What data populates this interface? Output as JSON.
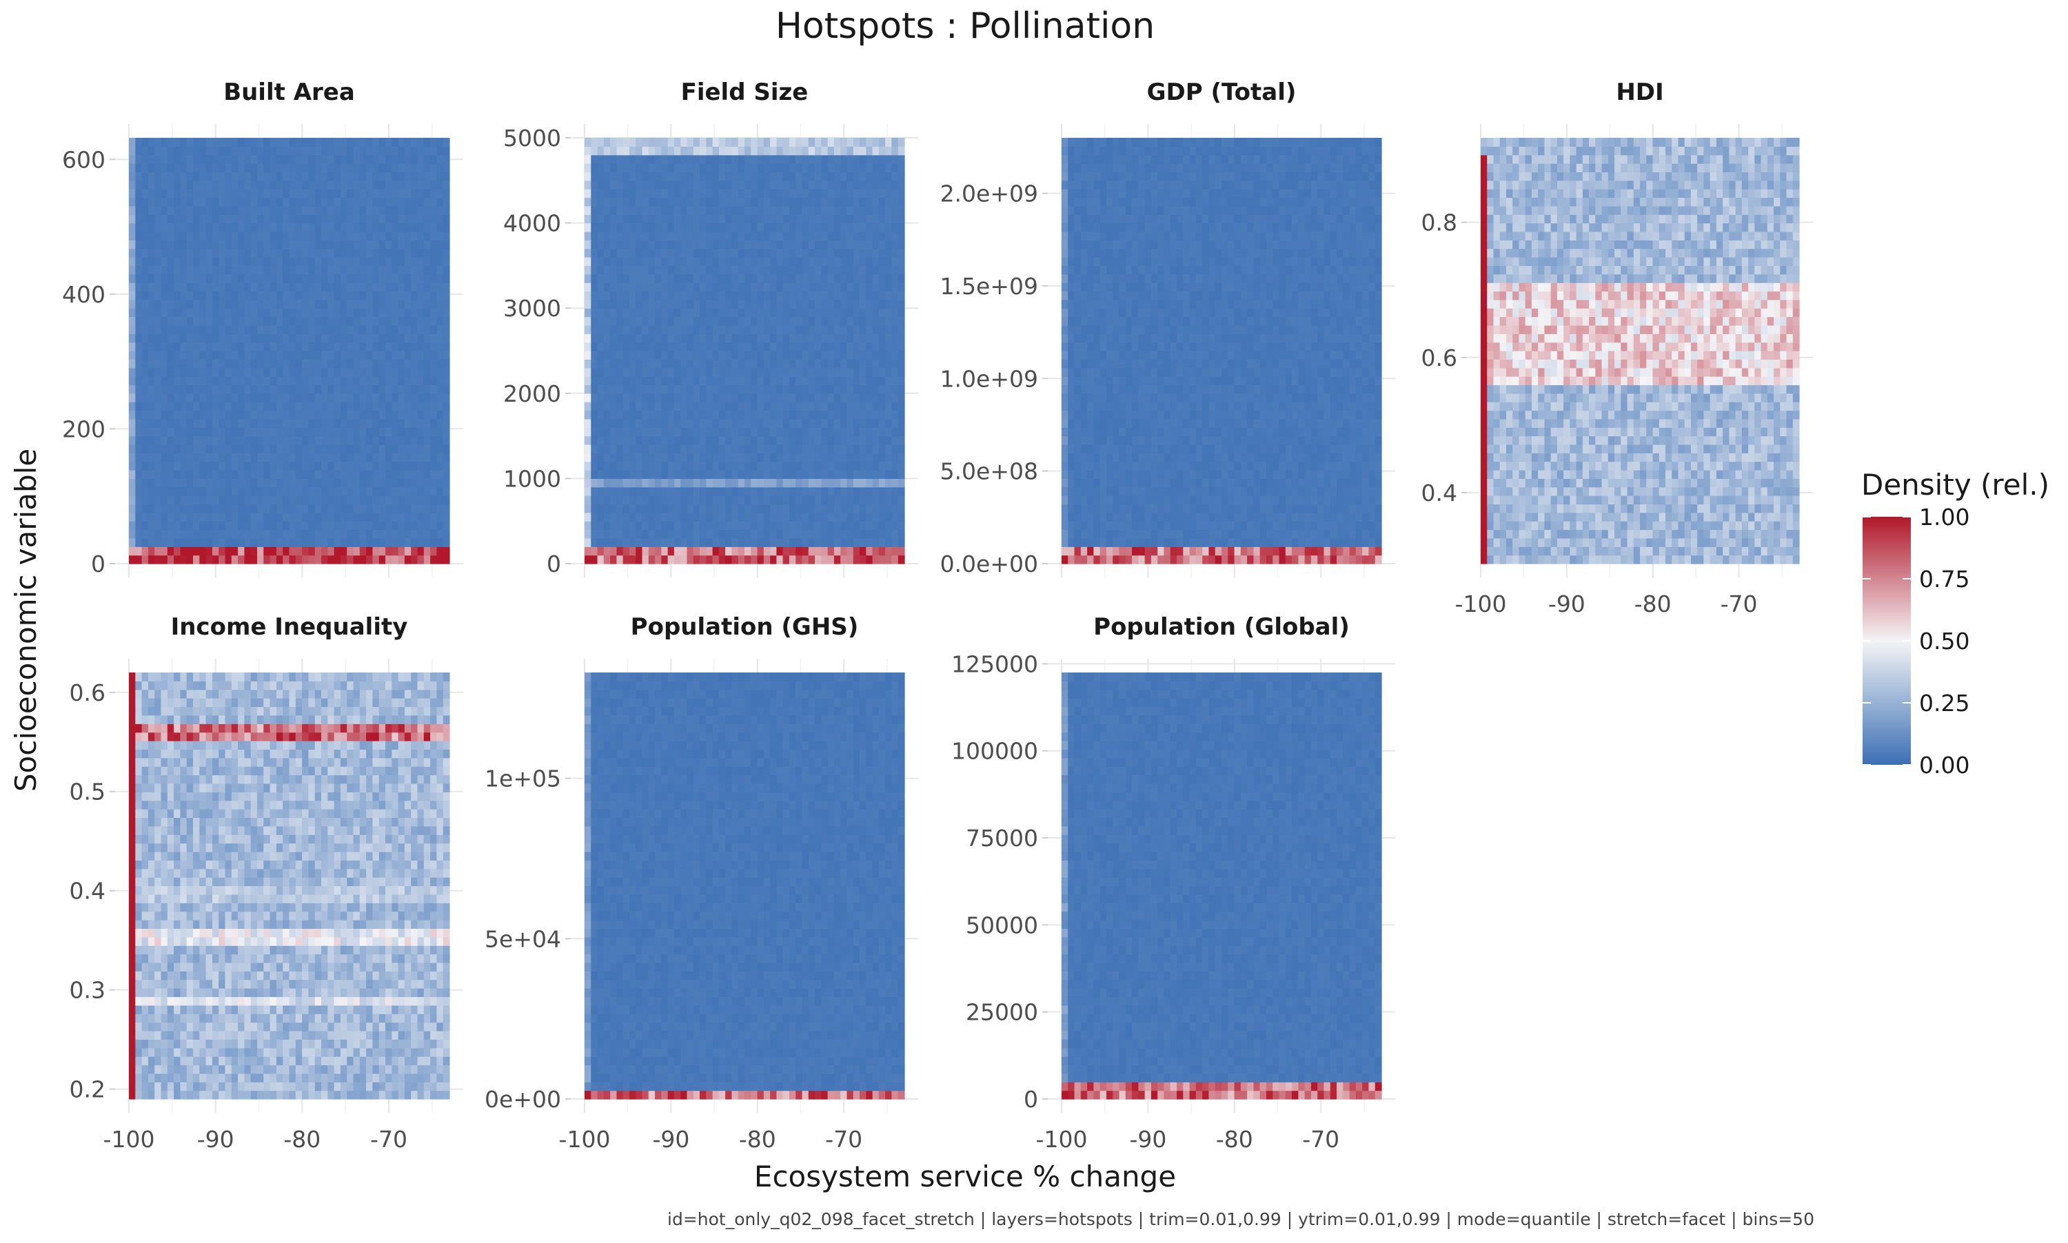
{
  "chart_data": {
    "type": "heatmap",
    "title": "Hotspots : Pollination",
    "xlabel": "Ecosystem service % change",
    "ylabel": "Socioeconomic variable",
    "caption": "id=hot_only_q02_098_facet_stretch | layers=hotspots | trim=0.01,0.99 | ytrim=0.01,0.99 | mode=quantile | stretch=facet | bins=50",
    "legend": {
      "title": "Density (rel.)",
      "ticks": [
        "1.00",
        "0.75",
        "0.50",
        "0.25",
        "0.00"
      ],
      "tick_values": [
        1.0,
        0.75,
        0.5,
        0.25,
        0.0
      ],
      "range": [
        0,
        1
      ],
      "low_color": "#3b6fb4",
      "mid_color": "#f4f4f6",
      "high_color": "#b2182b",
      "placement": "right"
    },
    "grid": true,
    "bins": 50,
    "x_ticks": [
      "-100",
      "-90",
      "-80",
      "-70"
    ],
    "x_tick_values": [
      -100,
      -90,
      -80,
      -70
    ],
    "xlim": [
      -100,
      -63
    ],
    "facets": [
      {
        "name": "Built Area",
        "y_ticks": [
          "600",
          "400",
          "200",
          "0"
        ],
        "y_tick_values": [
          600,
          400,
          200,
          0
        ],
        "ylim": [
          0,
          632
        ],
        "show_x_axis": false,
        "hot_bands": [
          [
            0,
            20,
            0.95
          ]
        ],
        "edge_column": [
          0.0,
          632,
          0.25
        ]
      },
      {
        "name": "Field Size",
        "y_ticks": [
          "5000",
          "4000",
          "3000",
          "2000",
          "1000",
          "0"
        ],
        "y_tick_values": [
          5000,
          4000,
          3000,
          2000,
          1000,
          0
        ],
        "ylim": [
          0,
          5000
        ],
        "show_x_axis": false,
        "hot_bands": [
          [
            0,
            120,
            0.85
          ],
          [
            4880,
            5000,
            0.35
          ],
          [
            920,
            980,
            0.2
          ]
        ],
        "edge_column": [
          0.0,
          5000,
          0.45
        ]
      },
      {
        "name": "GDP (Total)",
        "y_ticks": [
          "2.0e+09",
          "1.5e+09",
          "1.0e+09",
          "5.0e+08",
          "0.0e+00"
        ],
        "y_tick_values": [
          2000000000,
          1500000000,
          1000000000,
          500000000,
          0
        ],
        "ylim": [
          0,
          2300000000
        ],
        "show_x_axis": false,
        "hot_bands": [
          [
            0,
            50000000,
            0.85
          ]
        ],
        "edge_column": [
          0.0,
          2300000000,
          0.15
        ]
      },
      {
        "name": "HDI",
        "y_ticks": [
          "0.8",
          "0.6",
          "0.4"
        ],
        "y_tick_values": [
          0.8,
          0.6,
          0.4
        ],
        "ylim": [
          0.295,
          0.925
        ],
        "show_x_axis": true,
        "hot_bands": [
          [
            0.57,
            0.7,
            0.6
          ]
        ],
        "edge_column": [
          0.295,
          0.905,
          1.0
        ]
      },
      {
        "name": "Income Inequality",
        "y_ticks": [
          "0.6",
          "0.5",
          "0.4",
          "0.3",
          "0.2"
        ],
        "y_tick_values": [
          0.6,
          0.5,
          0.4,
          0.3,
          0.2
        ],
        "ylim": [
          0.19,
          0.62
        ],
        "show_x_axis": true,
        "hot_bands": [
          [
            0.553,
            0.561,
            0.85
          ],
          [
            0.35,
            0.356,
            0.5
          ],
          [
            0.287,
            0.293,
            0.45
          ],
          [
            0.395,
            0.4,
            0.35
          ]
        ],
        "edge_column": [
          0.2,
          0.62,
          1.0
        ]
      },
      {
        "name": "Population (GHS)",
        "y_ticks": [
          "1e+05",
          "5e+04",
          "0e+00"
        ],
        "y_tick_values": [
          100000,
          50000,
          0
        ],
        "ylim": [
          0,
          133000
        ],
        "show_x_axis": true,
        "hot_bands": [
          [
            0,
            2500,
            0.85
          ]
        ],
        "edge_column": [
          0.0,
          133000,
          0.2
        ]
      },
      {
        "name": "Population (Global)",
        "y_ticks": [
          "125000",
          "100000",
          "75000",
          "50000",
          "25000",
          "0"
        ],
        "y_tick_values": [
          125000,
          100000,
          75000,
          50000,
          25000,
          0
        ],
        "ylim": [
          0,
          122500
        ],
        "show_x_axis": true,
        "hot_bands": [
          [
            0,
            2500,
            0.85
          ]
        ],
        "edge_column": [
          0.0,
          122500,
          0.2
        ]
      }
    ]
  }
}
